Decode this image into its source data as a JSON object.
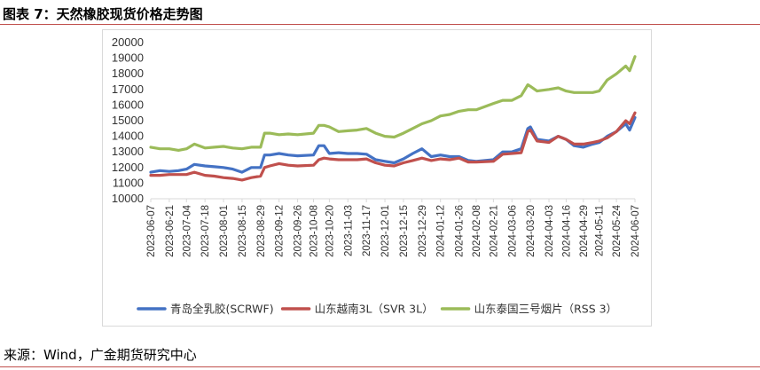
{
  "figure": {
    "title": "图表 7：天然橡胶现货价格走势图",
    "source": "来源：Wind，广金期货研究中心"
  },
  "colors": {
    "rule": "#c0504d",
    "series_blue": "#4472c4",
    "series_red": "#c0504d",
    "series_green": "#9bbb59"
  },
  "chart_data": {
    "type": "line",
    "title": "",
    "xlabel": "",
    "ylabel": "",
    "ylim": [
      10000,
      20000
    ],
    "yticks": [
      10000,
      11000,
      12000,
      13000,
      14000,
      15000,
      16000,
      17000,
      18000,
      19000,
      20000
    ],
    "xlim": [
      "2023-06-07",
      "2024-06-07"
    ],
    "xticks": [
      "2023-06-07",
      "2023-06-21",
      "2023-07-04",
      "2023-07-18",
      "2023-08-01",
      "2023-08-15",
      "2023-08-29",
      "2023-09-12",
      "2023-09-26",
      "2023-10-08",
      "2023-10-20",
      "2023-11-03",
      "2023-11-17",
      "2023-12-01",
      "2023-12-15",
      "2023-12-29",
      "2024-01-12",
      "2024-01-26",
      "2024-02-08",
      "2024-02-21",
      "2024-03-06",
      "2024-03-20",
      "2024-04-03",
      "2024-04-16",
      "2024-04-29",
      "2024-05-11",
      "2024-05-24",
      "2024-06-07"
    ],
    "grid": false,
    "legend_position": "bottom",
    "series": [
      {
        "name": "青岛全乳胶(SCRWF)",
        "color": "#4472c4",
        "points": [
          [
            "2023-06-07",
            11700
          ],
          [
            "2023-06-14",
            11800
          ],
          [
            "2023-06-21",
            11750
          ],
          [
            "2023-06-28",
            11800
          ],
          [
            "2023-07-04",
            11900
          ],
          [
            "2023-07-10",
            12200
          ],
          [
            "2023-07-18",
            12100
          ],
          [
            "2023-07-25",
            12050
          ],
          [
            "2023-08-01",
            12000
          ],
          [
            "2023-08-08",
            11900
          ],
          [
            "2023-08-15",
            11700
          ],
          [
            "2023-08-22",
            12000
          ],
          [
            "2023-08-29",
            12000
          ],
          [
            "2023-09-01",
            12800
          ],
          [
            "2023-09-05",
            12800
          ],
          [
            "2023-09-12",
            12900
          ],
          [
            "2023-09-19",
            12800
          ],
          [
            "2023-09-26",
            12750
          ],
          [
            "2023-10-08",
            12800
          ],
          [
            "2023-10-12",
            13400
          ],
          [
            "2023-10-16",
            13400
          ],
          [
            "2023-10-20",
            12900
          ],
          [
            "2023-10-27",
            12950
          ],
          [
            "2023-11-03",
            12900
          ],
          [
            "2023-11-10",
            12900
          ],
          [
            "2023-11-17",
            12850
          ],
          [
            "2023-11-24",
            12500
          ],
          [
            "2023-12-01",
            12400
          ],
          [
            "2023-12-08",
            12300
          ],
          [
            "2023-12-15",
            12550
          ],
          [
            "2023-12-22",
            12900
          ],
          [
            "2023-12-29",
            13200
          ],
          [
            "2024-01-05",
            12700
          ],
          [
            "2024-01-12",
            12800
          ],
          [
            "2024-01-19",
            12700
          ],
          [
            "2024-01-26",
            12700
          ],
          [
            "2024-02-02",
            12450
          ],
          [
            "2024-02-08",
            12400
          ],
          [
            "2024-02-21",
            12500
          ],
          [
            "2024-02-28",
            13000
          ],
          [
            "2024-03-06",
            13000
          ],
          [
            "2024-03-13",
            13200
          ],
          [
            "2024-03-18",
            14500
          ],
          [
            "2024-03-20",
            14600
          ],
          [
            "2024-03-25",
            13800
          ],
          [
            "2024-04-03",
            13700
          ],
          [
            "2024-04-10",
            14000
          ],
          [
            "2024-04-16",
            13800
          ],
          [
            "2024-04-22",
            13400
          ],
          [
            "2024-04-29",
            13300
          ],
          [
            "2024-05-06",
            13500
          ],
          [
            "2024-05-11",
            13600
          ],
          [
            "2024-05-17",
            14000
          ],
          [
            "2024-05-24",
            14300
          ],
          [
            "2024-05-31",
            14800
          ],
          [
            "2024-06-03",
            14400
          ],
          [
            "2024-06-07",
            15200
          ]
        ]
      },
      {
        "name": "山东越南3L（SVR 3L）",
        "color": "#c0504d",
        "points": [
          [
            "2023-06-07",
            11500
          ],
          [
            "2023-06-14",
            11500
          ],
          [
            "2023-06-21",
            11550
          ],
          [
            "2023-06-28",
            11550
          ],
          [
            "2023-07-04",
            11550
          ],
          [
            "2023-07-10",
            11700
          ],
          [
            "2023-07-18",
            11500
          ],
          [
            "2023-07-25",
            11450
          ],
          [
            "2023-08-01",
            11350
          ],
          [
            "2023-08-08",
            11300
          ],
          [
            "2023-08-15",
            11200
          ],
          [
            "2023-08-22",
            11350
          ],
          [
            "2023-08-29",
            11450
          ],
          [
            "2023-09-01",
            12000
          ],
          [
            "2023-09-05",
            12100
          ],
          [
            "2023-09-12",
            12250
          ],
          [
            "2023-09-19",
            12150
          ],
          [
            "2023-09-26",
            12100
          ],
          [
            "2023-10-08",
            12150
          ],
          [
            "2023-10-12",
            12500
          ],
          [
            "2023-10-16",
            12600
          ],
          [
            "2023-10-20",
            12550
          ],
          [
            "2023-10-27",
            12500
          ],
          [
            "2023-11-03",
            12500
          ],
          [
            "2023-11-10",
            12500
          ],
          [
            "2023-11-17",
            12550
          ],
          [
            "2023-11-24",
            12300
          ],
          [
            "2023-12-01",
            12150
          ],
          [
            "2023-12-08",
            12100
          ],
          [
            "2023-12-15",
            12300
          ],
          [
            "2023-12-22",
            12450
          ],
          [
            "2023-12-29",
            12600
          ],
          [
            "2024-01-05",
            12450
          ],
          [
            "2024-01-12",
            12550
          ],
          [
            "2024-01-19",
            12500
          ],
          [
            "2024-01-26",
            12600
          ],
          [
            "2024-02-02",
            12350
          ],
          [
            "2024-02-08",
            12350
          ],
          [
            "2024-02-21",
            12400
          ],
          [
            "2024-02-28",
            12850
          ],
          [
            "2024-03-06",
            12900
          ],
          [
            "2024-03-13",
            12950
          ],
          [
            "2024-03-18",
            14300
          ],
          [
            "2024-03-20",
            14400
          ],
          [
            "2024-03-25",
            13700
          ],
          [
            "2024-04-03",
            13600
          ],
          [
            "2024-04-10",
            14000
          ],
          [
            "2024-04-16",
            13800
          ],
          [
            "2024-04-22",
            13500
          ],
          [
            "2024-04-29",
            13500
          ],
          [
            "2024-05-06",
            13600
          ],
          [
            "2024-05-11",
            13700
          ],
          [
            "2024-05-17",
            13900
          ],
          [
            "2024-05-24",
            14300
          ],
          [
            "2024-05-31",
            15000
          ],
          [
            "2024-06-03",
            14800
          ],
          [
            "2024-06-07",
            15500
          ]
        ]
      },
      {
        "name": "山东泰国三号烟片（RSS 3）",
        "color": "#9bbb59",
        "points": [
          [
            "2023-06-07",
            13300
          ],
          [
            "2023-06-14",
            13200
          ],
          [
            "2023-06-21",
            13200
          ],
          [
            "2023-06-28",
            13100
          ],
          [
            "2023-07-04",
            13200
          ],
          [
            "2023-07-10",
            13500
          ],
          [
            "2023-07-18",
            13250
          ],
          [
            "2023-07-25",
            13300
          ],
          [
            "2023-08-01",
            13350
          ],
          [
            "2023-08-08",
            13250
          ],
          [
            "2023-08-15",
            13200
          ],
          [
            "2023-08-22",
            13300
          ],
          [
            "2023-08-29",
            13300
          ],
          [
            "2023-09-01",
            14200
          ],
          [
            "2023-09-05",
            14200
          ],
          [
            "2023-09-12",
            14100
          ],
          [
            "2023-09-19",
            14150
          ],
          [
            "2023-09-26",
            14100
          ],
          [
            "2023-10-08",
            14200
          ],
          [
            "2023-10-12",
            14700
          ],
          [
            "2023-10-16",
            14700
          ],
          [
            "2023-10-20",
            14600
          ],
          [
            "2023-10-27",
            14300
          ],
          [
            "2023-11-03",
            14350
          ],
          [
            "2023-11-10",
            14400
          ],
          [
            "2023-11-17",
            14500
          ],
          [
            "2023-11-24",
            14200
          ],
          [
            "2023-12-01",
            14000
          ],
          [
            "2023-12-08",
            13950
          ],
          [
            "2023-12-15",
            14200
          ],
          [
            "2023-12-22",
            14500
          ],
          [
            "2023-12-29",
            14800
          ],
          [
            "2024-01-05",
            15000
          ],
          [
            "2024-01-12",
            15300
          ],
          [
            "2024-01-19",
            15400
          ],
          [
            "2024-01-26",
            15600
          ],
          [
            "2024-02-02",
            15700
          ],
          [
            "2024-02-08",
            15700
          ],
          [
            "2024-02-21",
            16100
          ],
          [
            "2024-02-28",
            16300
          ],
          [
            "2024-03-06",
            16300
          ],
          [
            "2024-03-13",
            16600
          ],
          [
            "2024-03-18",
            17300
          ],
          [
            "2024-03-20",
            17200
          ],
          [
            "2024-03-25",
            16900
          ],
          [
            "2024-04-03",
            17000
          ],
          [
            "2024-04-10",
            17100
          ],
          [
            "2024-04-16",
            16900
          ],
          [
            "2024-04-22",
            16800
          ],
          [
            "2024-04-29",
            16800
          ],
          [
            "2024-05-06",
            16800
          ],
          [
            "2024-05-11",
            16900
          ],
          [
            "2024-05-17",
            17600
          ],
          [
            "2024-05-24",
            18000
          ],
          [
            "2024-05-31",
            18500
          ],
          [
            "2024-06-03",
            18200
          ],
          [
            "2024-06-07",
            19100
          ]
        ]
      }
    ]
  }
}
